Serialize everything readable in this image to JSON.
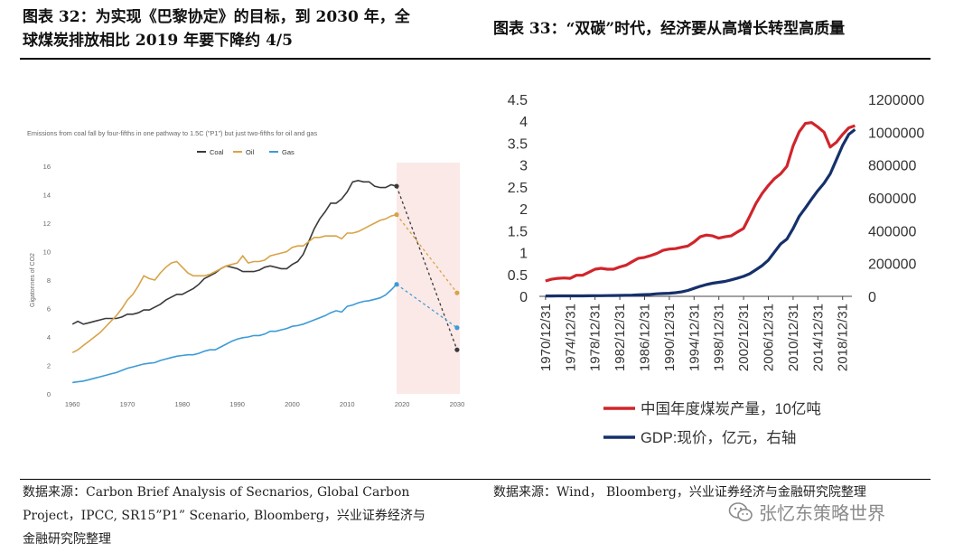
{
  "left": {
    "title": "图表 32：为实现《巴黎协定》的目标，到 2030 年，全球煤炭排放相比 2019 年要下降约 4/5",
    "title_line1": "图表 32：为实现《巴黎协定》的目标，到 2030 年，全",
    "title_line2": "球煤炭排放相比 2019 年要下降约 4/5",
    "source_line1": "数据来源：Carbon Brief Analysis of Secnarios, Global Carbon",
    "source_line2": "Project，IPCC, SR15”P1” Scenario, Bloomberg，兴业证券经济与",
    "source_line3": "金融研究院整理"
  },
  "right": {
    "title": "图表 33：“双碳”时代，经济要从高增长转型高质量",
    "source": "数据来源：Wind， Bloomberg，兴业证券经济与金融研究院整理"
  },
  "watermark": {
    "text": "张忆东策略世界",
    "icon": "wechat-icon"
  },
  "colors": {
    "coal": "#3a3a3a",
    "oil": "#d8a346",
    "gas": "#3d9bd6",
    "coal_cn": "#d0252b",
    "gdp": "#15306b",
    "projection_band": "#fbe9e7"
  },
  "chart_data": [
    {
      "type": "line",
      "title": "Emissions from coal fall by four-fifths in one pathway to 1.5C (\"P1\") but just two-fifths for oil and gas",
      "xlabel": "",
      "ylabel": "Gigatonnes of CO2",
      "xlim": [
        1958,
        2031
      ],
      "ylim": [
        0,
        16
      ],
      "xticks": [
        "1960",
        "1970",
        "1980",
        "1990",
        "2000",
        "2010",
        "2020",
        "2030"
      ],
      "yticks": [
        "0",
        "2",
        "4",
        "6",
        "8",
        "10",
        "12",
        "14",
        "16"
      ],
      "projection_period": [
        2019,
        2030
      ],
      "legend": [
        "Coal",
        "Oil",
        "Gas"
      ],
      "legend_position": "top-center",
      "series": [
        {
          "name": "Coal",
          "color": "#3a3a3a",
          "x": [
            1960,
            1961,
            1962,
            1963,
            1964,
            1965,
            1966,
            1967,
            1968,
            1969,
            1970,
            1971,
            1972,
            1973,
            1974,
            1975,
            1976,
            1977,
            1978,
            1979,
            1980,
            1981,
            1982,
            1983,
            1984,
            1985,
            1986,
            1987,
            1988,
            1989,
            1990,
            1991,
            1992,
            1993,
            1994,
            1995,
            1996,
            1997,
            1998,
            1999,
            2000,
            2001,
            2002,
            2003,
            2004,
            2005,
            2006,
            2007,
            2008,
            2009,
            2010,
            2011,
            2012,
            2013,
            2014,
            2015,
            2016,
            2017,
            2018,
            2019
          ],
          "y": [
            4.9,
            5.1,
            4.9,
            5.0,
            5.1,
            5.2,
            5.3,
            5.3,
            5.3,
            5.4,
            5.6,
            5.6,
            5.7,
            5.9,
            5.9,
            6.1,
            6.3,
            6.6,
            6.8,
            7.0,
            7.0,
            7.2,
            7.4,
            7.7,
            8.1,
            8.3,
            8.5,
            8.8,
            9.0,
            8.9,
            8.8,
            8.6,
            8.6,
            8.6,
            8.7,
            8.9,
            9.0,
            8.9,
            8.8,
            8.8,
            9.1,
            9.3,
            9.8,
            10.7,
            11.6,
            12.3,
            12.8,
            13.4,
            13.4,
            13.7,
            14.2,
            14.9,
            15.0,
            14.9,
            14.9,
            14.6,
            14.5,
            14.5,
            14.7,
            14.6
          ],
          "projection": {
            "x": [
              2019,
              2030
            ],
            "y": [
              14.6,
              3.1
            ]
          }
        },
        {
          "name": "Oil",
          "color": "#d8a346",
          "x": [
            1960,
            1961,
            1962,
            1963,
            1964,
            1965,
            1966,
            1967,
            1968,
            1969,
            1970,
            1971,
            1972,
            1973,
            1974,
            1975,
            1976,
            1977,
            1978,
            1979,
            1980,
            1981,
            1982,
            1983,
            1984,
            1985,
            1986,
            1987,
            1988,
            1989,
            1990,
            1991,
            1992,
            1993,
            1994,
            1995,
            1996,
            1997,
            1998,
            1999,
            2000,
            2001,
            2002,
            2003,
            2004,
            2005,
            2006,
            2007,
            2008,
            2009,
            2010,
            2011,
            2012,
            2013,
            2014,
            2015,
            2016,
            2017,
            2018,
            2019
          ],
          "y": [
            2.9,
            3.1,
            3.4,
            3.7,
            4.0,
            4.3,
            4.7,
            5.1,
            5.5,
            6.0,
            6.6,
            7.0,
            7.6,
            8.3,
            8.1,
            8.0,
            8.5,
            8.9,
            9.2,
            9.3,
            8.9,
            8.5,
            8.3,
            8.3,
            8.3,
            8.4,
            8.6,
            8.8,
            9.0,
            9.1,
            9.2,
            9.7,
            9.2,
            9.3,
            9.3,
            9.4,
            9.7,
            9.8,
            9.9,
            10.0,
            10.3,
            10.4,
            10.4,
            10.7,
            11.0,
            11.0,
            11.1,
            11.1,
            11.1,
            10.9,
            11.3,
            11.3,
            11.4,
            11.6,
            11.8,
            12.0,
            12.2,
            12.3,
            12.5,
            12.6
          ],
          "projection": {
            "x": [
              2019,
              2030
            ],
            "y": [
              12.6,
              7.1
            ]
          }
        },
        {
          "name": "Gas",
          "color": "#3d9bd6",
          "x": [
            1960,
            1961,
            1962,
            1963,
            1964,
            1965,
            1966,
            1967,
            1968,
            1969,
            1970,
            1971,
            1972,
            1973,
            1974,
            1975,
            1976,
            1977,
            1978,
            1979,
            1980,
            1981,
            1982,
            1983,
            1984,
            1985,
            1986,
            1987,
            1988,
            1989,
            1990,
            1991,
            1992,
            1993,
            1994,
            1995,
            1996,
            1997,
            1998,
            1999,
            2000,
            2001,
            2002,
            2003,
            2004,
            2005,
            2006,
            2007,
            2008,
            2009,
            2010,
            2011,
            2012,
            2013,
            2014,
            2015,
            2016,
            2017,
            2018,
            2019
          ],
          "y": [
            0.8,
            0.85,
            0.9,
            1.0,
            1.1,
            1.2,
            1.3,
            1.4,
            1.5,
            1.65,
            1.8,
            1.9,
            2.0,
            2.1,
            2.15,
            2.2,
            2.35,
            2.45,
            2.55,
            2.65,
            2.7,
            2.75,
            2.75,
            2.85,
            3.0,
            3.1,
            3.1,
            3.3,
            3.5,
            3.7,
            3.85,
            3.95,
            4.0,
            4.1,
            4.1,
            4.2,
            4.4,
            4.4,
            4.5,
            4.6,
            4.75,
            4.8,
            4.9,
            5.05,
            5.2,
            5.35,
            5.5,
            5.7,
            5.85,
            5.75,
            6.15,
            6.25,
            6.4,
            6.5,
            6.55,
            6.65,
            6.75,
            6.95,
            7.3,
            7.7
          ],
          "projection": {
            "x": [
              2019,
              2030
            ],
            "y": [
              7.7,
              4.65
            ]
          }
        }
      ]
    },
    {
      "type": "line",
      "title": "",
      "xlabel": "",
      "y_left": {
        "lim": [
          0,
          4.5
        ],
        "ticks": [
          "0",
          "0.5",
          "1",
          "1.5",
          "2",
          "2.5",
          "3",
          "3.5",
          "4",
          "4.5"
        ]
      },
      "y_right": {
        "lim": [
          0,
          1200000
        ],
        "ticks": [
          "0",
          "200000",
          "400000",
          "600000",
          "800000",
          "1000000",
          "1200000"
        ]
      },
      "xticks": [
        "1970/12/31",
        "1974/12/31",
        "1978/12/31",
        "1982/12/31",
        "1986/12/31",
        "1990/12/31",
        "1994/12/31",
        "1998/12/31",
        "2002/12/31",
        "2006/12/31",
        "2010/12/31",
        "2014/12/31",
        "2018/12/31"
      ],
      "legend": [
        "中国年度煤炭产量，10亿吨",
        "GDP:现价，亿元，右轴"
      ],
      "legend_position": "bottom",
      "series": [
        {
          "name": "中国年度煤炭产量，10亿吨",
          "axis": "left",
          "color": "#d0252b",
          "x": [
            1970,
            1971,
            1972,
            1973,
            1974,
            1975,
            1976,
            1977,
            1978,
            1979,
            1980,
            1981,
            1982,
            1983,
            1984,
            1985,
            1986,
            1987,
            1988,
            1989,
            1990,
            1991,
            1992,
            1993,
            1994,
            1995,
            1996,
            1997,
            1998,
            1999,
            2000,
            2001,
            2002,
            2003,
            2004,
            2005,
            2006,
            2007,
            2008,
            2009,
            2010,
            2011,
            2012,
            2013,
            2014,
            2015,
            2016,
            2017,
            2018,
            2019,
            2020
          ],
          "y": [
            0.35,
            0.39,
            0.41,
            0.42,
            0.41,
            0.48,
            0.48,
            0.55,
            0.62,
            0.64,
            0.62,
            0.62,
            0.67,
            0.71,
            0.79,
            0.87,
            0.89,
            0.93,
            0.98,
            1.05,
            1.08,
            1.09,
            1.12,
            1.15,
            1.24,
            1.36,
            1.4,
            1.38,
            1.33,
            1.36,
            1.38,
            1.47,
            1.55,
            1.83,
            2.12,
            2.35,
            2.53,
            2.69,
            2.8,
            2.97,
            3.43,
            3.76,
            3.95,
            3.97,
            3.87,
            3.75,
            3.41,
            3.52,
            3.7,
            3.85,
            3.9
          ]
        },
        {
          "name": "GDP:现价，亿元，右轴",
          "axis": "right",
          "color": "#15306b",
          "x": [
            1970,
            1971,
            1972,
            1973,
            1974,
            1975,
            1976,
            1977,
            1978,
            1979,
            1980,
            1981,
            1982,
            1983,
            1984,
            1985,
            1986,
            1987,
            1988,
            1989,
            1990,
            1991,
            1992,
            1993,
            1994,
            1995,
            1996,
            1997,
            1998,
            1999,
            2000,
            2001,
            2002,
            2003,
            2004,
            2005,
            2006,
            2007,
            2008,
            2009,
            2010,
            2011,
            2012,
            2013,
            2014,
            2015,
            2016,
            2017,
            2018,
            2019,
            2020
          ],
          "y": [
            2280,
            2460,
            2550,
            2760,
            2790,
            3010,
            2960,
            3230,
            3679,
            4101,
            4588,
            4936,
            5373,
            6021,
            7279,
            9099,
            10376,
            12175,
            15180,
            17180,
            18873,
            22006,
            27195,
            35673,
            48638,
            61340,
            71814,
            79715,
            85196,
            90564,
            100280,
            110863,
            121717,
            137422,
            161840,
            187319,
            219439,
            270092,
            319245,
            348518,
            412119,
            487940,
            538580,
            592963,
            643563,
            688858,
            746395,
            832036,
            919281,
            986515,
            1015986
          ]
        }
      ]
    }
  ]
}
